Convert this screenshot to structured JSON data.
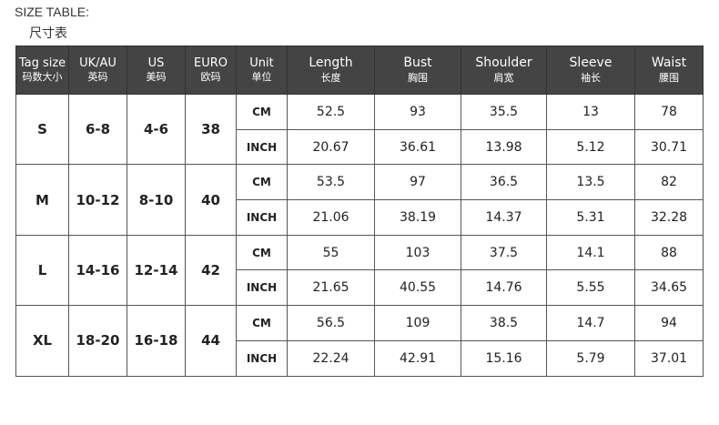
{
  "title_en": "SIZE TABLE:",
  "title_zh": "尺寸表",
  "columns": [
    {
      "en": "Tag size",
      "zh": "码数大小"
    },
    {
      "en": "UK/AU",
      "zh": "英码"
    },
    {
      "en": "US",
      "zh": "美码"
    },
    {
      "en": "EURO",
      "zh": "欧码"
    },
    {
      "en": "Unit",
      "zh": "单位"
    },
    {
      "en": "Length",
      "zh": "长度"
    },
    {
      "en": "Bust",
      "zh": "胸围"
    },
    {
      "en": "Shoulder",
      "zh": "肩宽"
    },
    {
      "en": "Sleeve",
      "zh": "袖长"
    },
    {
      "en": "Waist",
      "zh": "腰围"
    }
  ],
  "sizes": [
    {
      "tag": "S",
      "uk": "6-8",
      "us": "4-6",
      "euro": "38",
      "rows": [
        {
          "unit": "CM",
          "values": [
            "52.5",
            "93",
            "35.5",
            "13",
            "78"
          ]
        },
        {
          "unit": "INCH",
          "values": [
            "20.67",
            "36.61",
            "13.98",
            "5.12",
            "30.71"
          ]
        }
      ]
    },
    {
      "tag": "M",
      "uk": "10-12",
      "us": "8-10",
      "euro": "40",
      "rows": [
        {
          "unit": "CM",
          "values": [
            "53.5",
            "97",
            "36.5",
            "13.5",
            "82"
          ]
        },
        {
          "unit": "INCH",
          "values": [
            "21.06",
            "38.19",
            "14.37",
            "5.31",
            "32.28"
          ]
        }
      ]
    },
    {
      "tag": "L",
      "uk": "14-16",
      "us": "12-14",
      "euro": "42",
      "rows": [
        {
          "unit": "CM",
          "values": [
            "55",
            "103",
            "37.5",
            "14.1",
            "88"
          ]
        },
        {
          "unit": "INCH",
          "values": [
            "21.65",
            "40.55",
            "14.76",
            "5.55",
            "34.65"
          ]
        }
      ]
    },
    {
      "tag": "XL",
      "uk": "18-20",
      "us": "16-18",
      "euro": "44",
      "rows": [
        {
          "unit": "CM",
          "values": [
            "56.5",
            "109",
            "38.5",
            "14.7",
            "94"
          ]
        },
        {
          "unit": "INCH",
          "values": [
            "22.24",
            "42.91",
            "15.16",
            "5.79",
            "37.01"
          ]
        }
      ]
    }
  ]
}
